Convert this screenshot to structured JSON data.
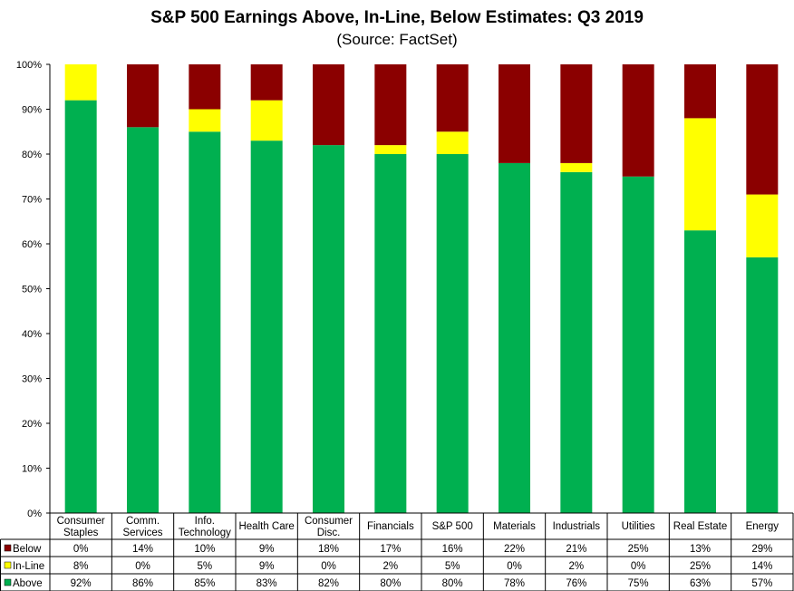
{
  "chart_data": {
    "type": "bar",
    "stacked": true,
    "title": "S&P 500 Earnings Above, In-Line, Below Estimates: Q3 2019",
    "subtitle": "(Source: FactSet)",
    "ylim": [
      0,
      100
    ],
    "yticks": [
      "0%",
      "10%",
      "20%",
      "30%",
      "40%",
      "50%",
      "60%",
      "70%",
      "80%",
      "90%",
      "100%"
    ],
    "grid": false,
    "legend_placement": "data-table-left",
    "categories": [
      [
        "Consumer",
        "Staples"
      ],
      [
        "Comm.",
        "Services"
      ],
      [
        "Info.",
        "Technology"
      ],
      [
        "Health Care"
      ],
      [
        "Consumer",
        "Disc."
      ],
      [
        "Financials"
      ],
      [
        "S&P 500"
      ],
      [
        "Materials"
      ],
      [
        "Industrials"
      ],
      [
        "Utilities"
      ],
      [
        "Real Estate"
      ],
      [
        "Energy"
      ]
    ],
    "series": [
      {
        "name": "Below",
        "color": "#8b0000",
        "values": [
          0,
          14,
          10,
          9,
          18,
          17,
          16,
          22,
          21,
          25,
          13,
          29
        ],
        "labels": [
          "0%",
          "14%",
          "10%",
          "9%",
          "18%",
          "17%",
          "16%",
          "22%",
          "21%",
          "25%",
          "13%",
          "29%"
        ]
      },
      {
        "name": "In-Line",
        "color": "#ffff00",
        "values": [
          8,
          0,
          5,
          9,
          0,
          2,
          5,
          0,
          2,
          0,
          25,
          14
        ],
        "labels": [
          "8%",
          "0%",
          "5%",
          "9%",
          "0%",
          "2%",
          "5%",
          "0%",
          "2%",
          "0%",
          "25%",
          "14%"
        ]
      },
      {
        "name": "Above",
        "color": "#00b050",
        "values": [
          92,
          86,
          85,
          83,
          82,
          80,
          80,
          78,
          76,
          75,
          63,
          57
        ],
        "labels": [
          "92%",
          "86%",
          "85%",
          "83%",
          "82%",
          "80%",
          "80%",
          "78%",
          "76%",
          "75%",
          "63%",
          "57%"
        ]
      }
    ]
  }
}
